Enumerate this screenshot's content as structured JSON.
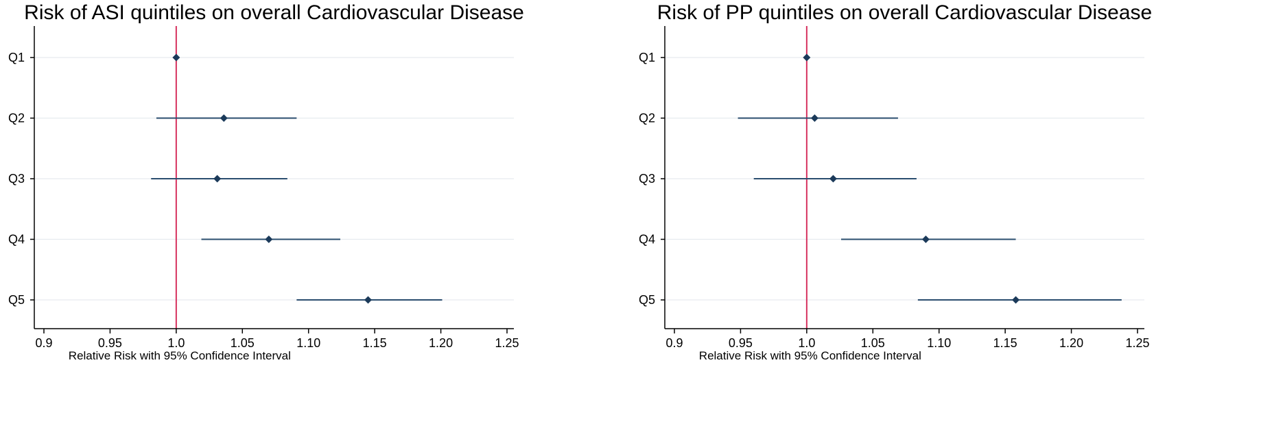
{
  "colors": {
    "background": "#ffffff",
    "reference_line": "#d6305e",
    "ci_line": "#2a4d6e",
    "marker": "#1b3a5a",
    "grid": "#e6ebef",
    "axis": "#000000"
  },
  "chart_data": [
    {
      "type": "forest",
      "title": "Risk of ASI quintiles on overall Cardiovascular Disease",
      "xlabel": "Relative Risk with 95% Confidence Interval",
      "ylabel": "",
      "xlim": [
        0.9,
        1.25
      ],
      "xticks": [
        0.9,
        0.95,
        1.0,
        1.05,
        1.1,
        1.15,
        1.2,
        1.25
      ],
      "xtick_labels": [
        "0.9",
        "0.95",
        "1.0",
        "1.05",
        "1.10",
        "1.15",
        "1.20",
        "1.25"
      ],
      "reference_x": 1.0,
      "grid": "horizontal",
      "categories": [
        "Q1",
        "Q2",
        "Q3",
        "Q4",
        "Q5"
      ],
      "estimates": [
        1.0,
        1.036,
        1.031,
        1.07,
        1.145
      ],
      "ci_lower": [
        1.0,
        0.985,
        0.981,
        1.019,
        1.091
      ],
      "ci_upper": [
        1.0,
        1.091,
        1.084,
        1.124,
        1.201
      ]
    },
    {
      "type": "forest",
      "title": "Risk of PP quintiles on overall Cardiovascular Disease",
      "xlabel": "Relative Risk with 95% Confidence Interval",
      "ylabel": "",
      "xlim": [
        0.9,
        1.25
      ],
      "xticks": [
        0.9,
        0.95,
        1.0,
        1.05,
        1.1,
        1.15,
        1.2,
        1.25
      ],
      "xtick_labels": [
        "0.9",
        "0.95",
        "1.0",
        "1.05",
        "1.10",
        "1.15",
        "1.20",
        "1.25"
      ],
      "reference_x": 1.0,
      "grid": "horizontal",
      "categories": [
        "Q1",
        "Q2",
        "Q3",
        "Q4",
        "Q5"
      ],
      "estimates": [
        1.0,
        1.006,
        1.02,
        1.09,
        1.158
      ],
      "ci_lower": [
        1.0,
        0.948,
        0.96,
        1.026,
        1.084
      ],
      "ci_upper": [
        1.0,
        1.069,
        1.083,
        1.158,
        1.238
      ]
    }
  ]
}
